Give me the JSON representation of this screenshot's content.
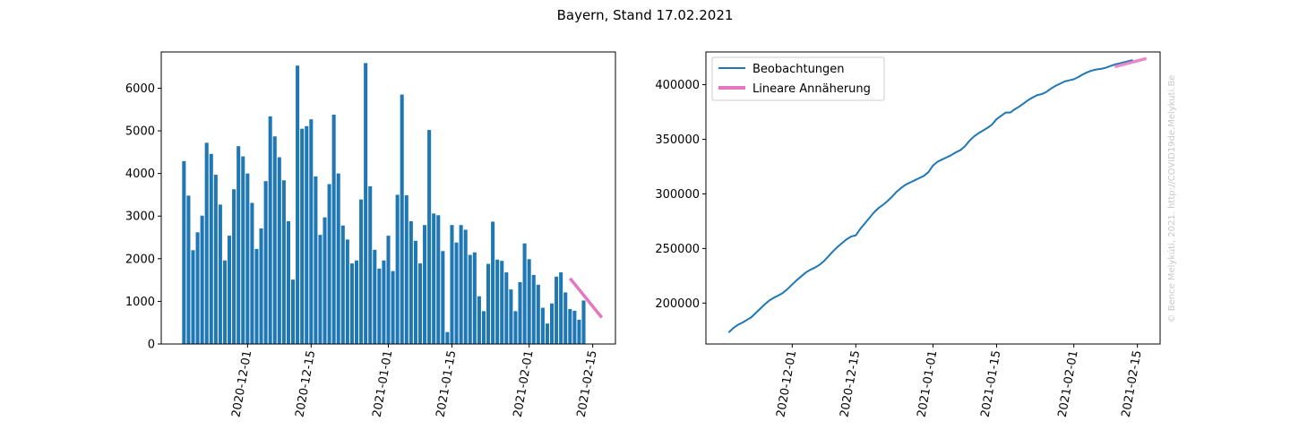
{
  "figure": {
    "title": "Bayern, Stand 17.02.2021",
    "credit": "© Bence Melykúti, 2021. http://COVID19de.Melykuti.Be"
  },
  "colors": {
    "bars": "#1f77b4",
    "observations": "#1f77b4",
    "fit": "#e377c2"
  },
  "chart_data": [
    {
      "type": "bar",
      "x_type": "date",
      "x_start": "2020-11-17",
      "x_ticks": [
        "2020-12-01",
        "2020-12-15",
        "2021-01-01",
        "2021-01-15",
        "2021-02-01",
        "2021-02-15"
      ],
      "xlim": [
        "2020-11-12",
        "2021-02-20"
      ],
      "ylim": [
        0,
        6850
      ],
      "y_ticks": [
        0,
        1000,
        2000,
        3000,
        4000,
        5000,
        6000
      ],
      "values": [
        4290,
        3480,
        2200,
        2620,
        3010,
        4720,
        4460,
        3970,
        3270,
        1960,
        2540,
        3630,
        4640,
        4400,
        4000,
        3310,
        2230,
        2710,
        3820,
        5340,
        4870,
        4380,
        3840,
        2880,
        1510,
        6530,
        5050,
        5110,
        5270,
        3930,
        2560,
        2970,
        3750,
        5380,
        4000,
        2780,
        2450,
        1890,
        1960,
        3390,
        6590,
        3700,
        2210,
        1770,
        1960,
        2540,
        1710,
        3500,
        5850,
        3490,
        2880,
        2420,
        1890,
        2790,
        5020,
        3060,
        3020,
        2180,
        280,
        2790,
        2380,
        2790,
        2680,
        2090,
        2150,
        1120,
        770,
        1880,
        2870,
        1980,
        1950,
        1680,
        1280,
        770,
        1450,
        2360,
        1990,
        1620,
        1390,
        850,
        480,
        950,
        1580,
        1680,
        1210,
        820,
        780,
        570,
        1020
      ],
      "fit": {
        "label": "Lineare Annäherung",
        "x": [
          "2021-02-10",
          "2021-02-17"
        ],
        "y": [
          1540,
          620
        ]
      }
    },
    {
      "type": "line",
      "x_type": "date",
      "x_start": "2020-11-17",
      "x_ticks": [
        "2020-12-01",
        "2020-12-15",
        "2021-01-01",
        "2021-01-15",
        "2021-02-01",
        "2021-02-15"
      ],
      "xlim": [
        "2020-11-12",
        "2021-02-20"
      ],
      "ylim": [
        162500,
        430000
      ],
      "y_ticks": [
        200000,
        250000,
        300000,
        350000,
        400000
      ],
      "legend_position": "upper left",
      "series": [
        {
          "name": "Beobachtungen",
          "values": [
            173000,
            177000,
            180000,
            182000,
            184500,
            187000,
            191000,
            195000,
            199000,
            202500,
            205000,
            207000,
            209500,
            213000,
            217000,
            221000,
            224500,
            228000,
            230500,
            232500,
            235000,
            238500,
            243000,
            247500,
            251500,
            255000,
            258500,
            261000,
            262000,
            268000,
            273000,
            278000,
            283000,
            287000,
            290000,
            293500,
            297500,
            302000,
            305500,
            308500,
            310500,
            312500,
            314500,
            316500,
            320000,
            326000,
            329500,
            331500,
            333500,
            335500,
            338000,
            340000,
            343500,
            348500,
            352500,
            355500,
            358000,
            360500,
            363500,
            368500,
            371500,
            374500,
            374500,
            377500,
            380000,
            383000,
            386000,
            388500,
            390500,
            391500,
            393500,
            396500,
            399000,
            401000,
            403000,
            404000,
            405000,
            407000,
            409500,
            411500,
            413000,
            414000,
            414500,
            415500,
            417000,
            418500,
            419500,
            420500,
            421500,
            422500
          ]
        },
        {
          "name": "Lineare Annäherung",
          "x": [
            "2021-02-10",
            "2021-02-17"
          ],
          "y": [
            416500,
            424000
          ]
        }
      ]
    }
  ]
}
